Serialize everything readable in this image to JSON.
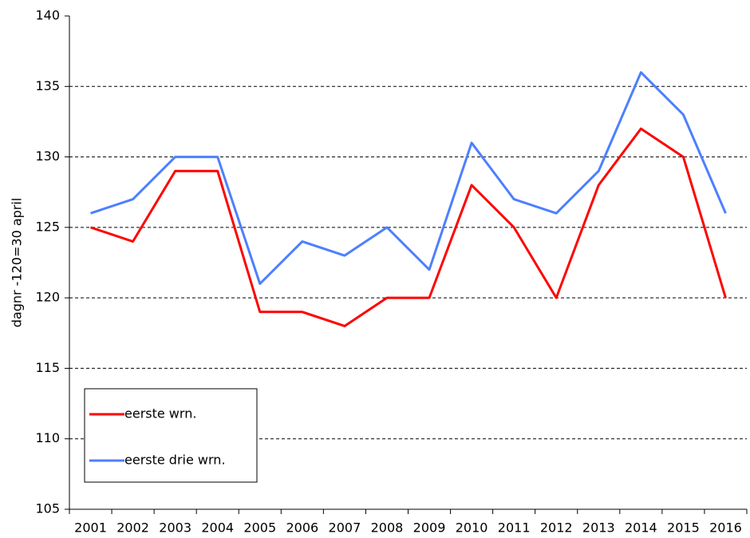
{
  "chart_data": {
    "type": "line",
    "y_label": "dagnr -120=30 april",
    "categories": [
      "2001",
      "2002",
      "2003",
      "2004",
      "2005",
      "2006",
      "2007",
      "2008",
      "2009",
      "2010",
      "2011",
      "2012",
      "2013",
      "2014",
      "2015",
      "2016"
    ],
    "series": [
      {
        "name": "eerste wrn.",
        "color": "#ff0000",
        "values": [
          125,
          124,
          129,
          129,
          119,
          119,
          118,
          120,
          120,
          128,
          125,
          120,
          128,
          132,
          130,
          120
        ]
      },
      {
        "name": "eerste drie wrn.",
        "color": "#4d7fff",
        "values": [
          126,
          127,
          130,
          130,
          121,
          124,
          123,
          125,
          122,
          131,
          127,
          126,
          129,
          136,
          133,
          126
        ]
      }
    ],
    "ylim": [
      105,
      140
    ],
    "yticks": [
      105,
      110,
      115,
      120,
      125,
      130,
      135,
      140
    ],
    "grid": true,
    "legend": "lower left"
  }
}
